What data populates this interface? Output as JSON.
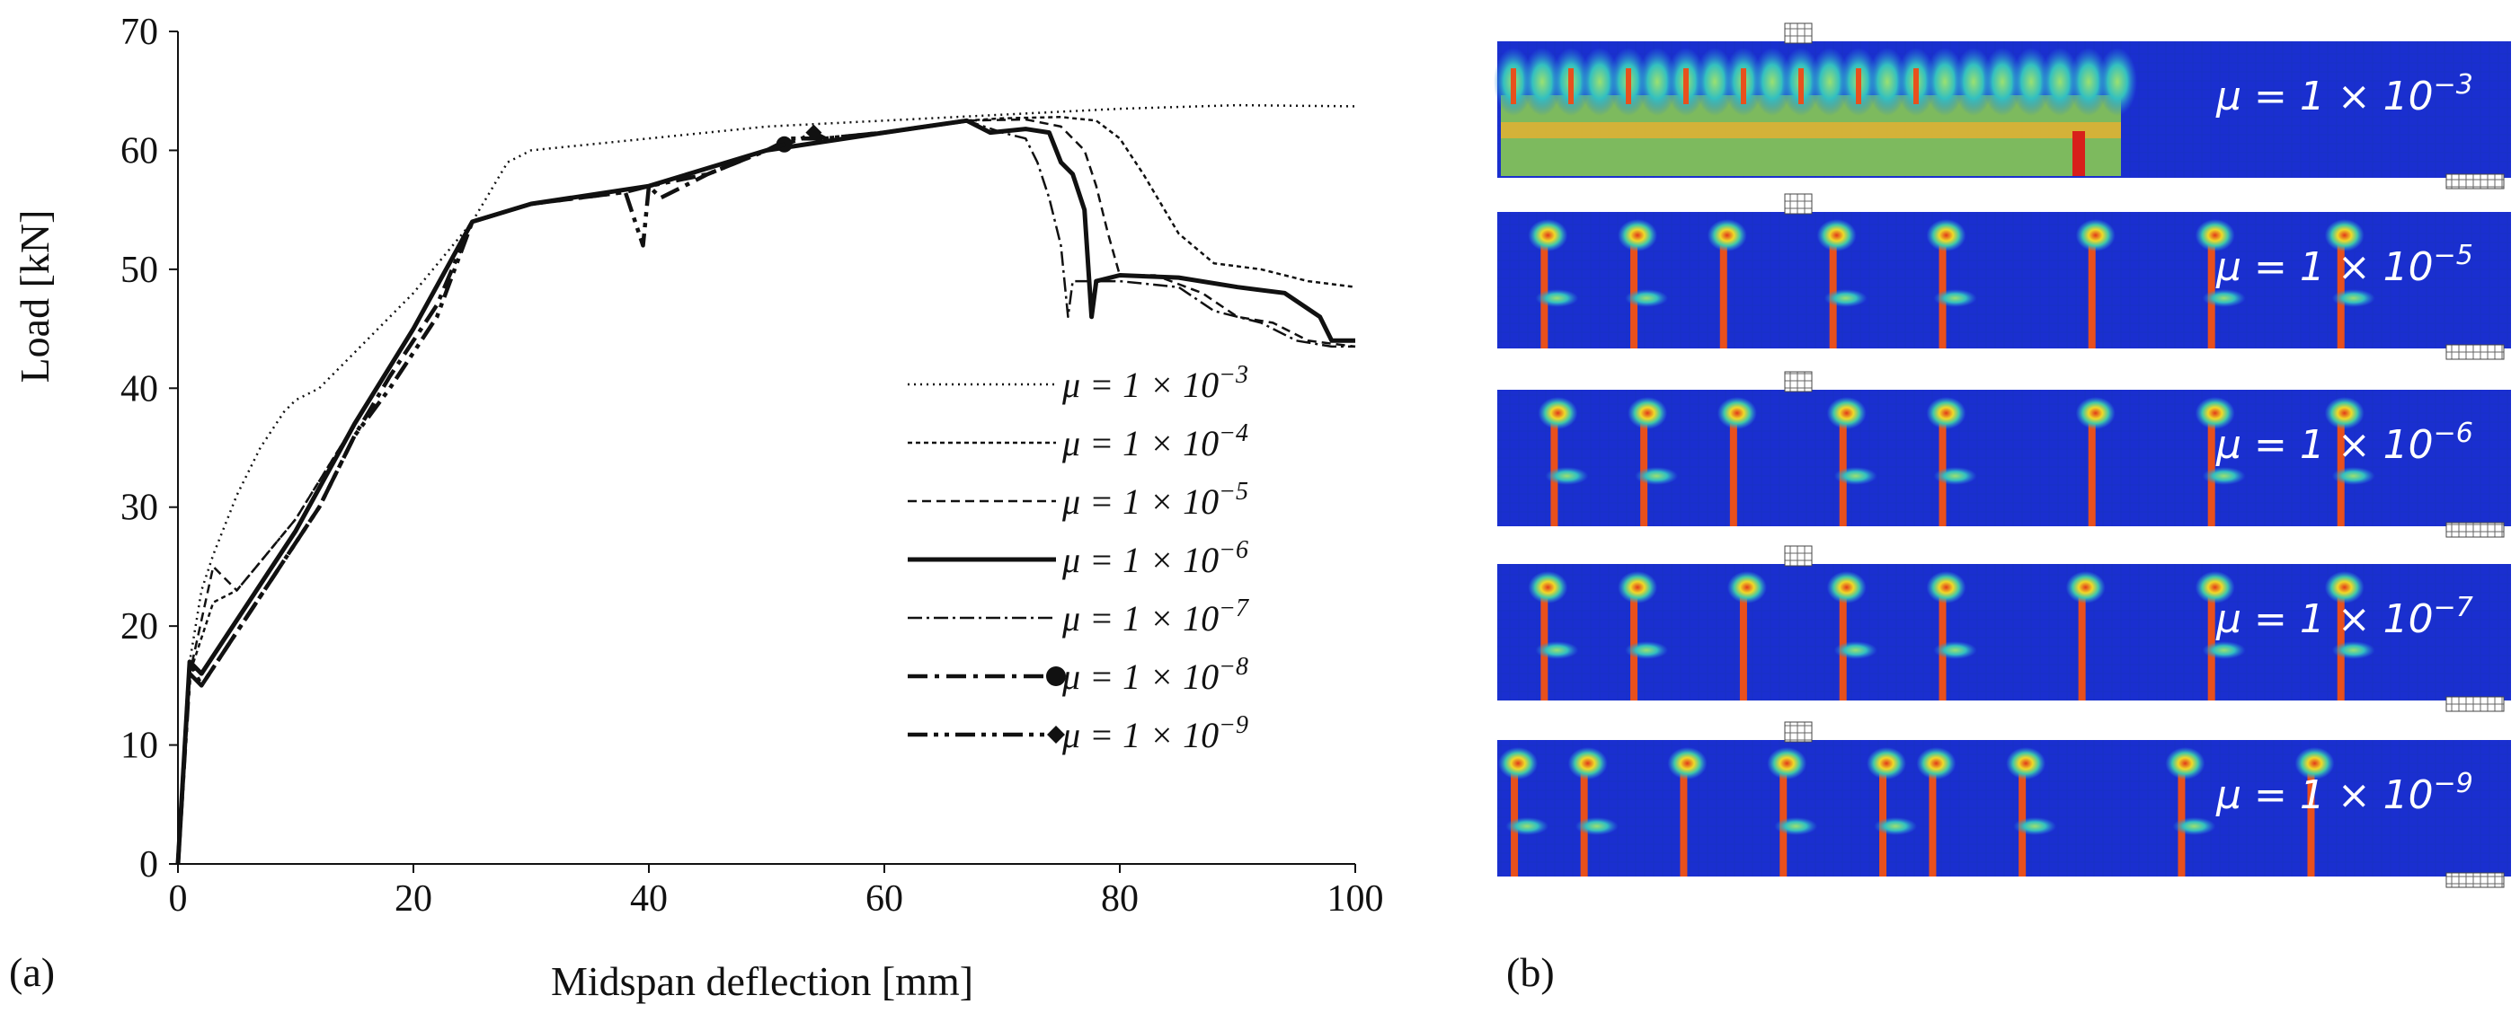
{
  "chart_data": {
    "type": "line",
    "panel_label": "(a)",
    "xlabel": "Midspan deflection [mm]",
    "ylabel": "Load [kN]",
    "xlim": [
      0,
      100
    ],
    "ylim": [
      0,
      70
    ],
    "x_ticks": [
      "0",
      "20",
      "40",
      "60",
      "80",
      "100"
    ],
    "y_ticks": [
      "0",
      "10",
      "20",
      "30",
      "40",
      "50",
      "60",
      "70"
    ],
    "legend_position": "right-center",
    "series": [
      {
        "name": "μ = 1 × 10⁻³",
        "base": "μ = 1 × 10",
        "exp": "−3",
        "style": "dotted",
        "x": [
          0,
          1,
          2,
          3,
          5,
          7,
          9,
          10,
          12,
          15,
          20,
          25,
          28,
          30,
          40,
          50,
          60,
          70,
          80,
          90,
          100
        ],
        "y": [
          0,
          17,
          23,
          26,
          31,
          35,
          38,
          39,
          40,
          43,
          48,
          54,
          59,
          60,
          61,
          62,
          62.5,
          63,
          63.5,
          63.8,
          63.7
        ]
      },
      {
        "name": "μ = 1 × 10⁻⁴",
        "base": "μ = 1 × 10",
        "exp": "−4",
        "style": "dash-fine",
        "x": [
          0,
          1,
          3,
          5,
          10,
          15,
          20,
          25,
          30,
          40,
          50,
          60,
          67,
          70,
          75,
          78,
          80,
          82,
          85,
          88,
          92,
          96,
          100
        ],
        "y": [
          0,
          16,
          22,
          23,
          29,
          37,
          45,
          54,
          55.5,
          57,
          60,
          61.5,
          62.5,
          62.7,
          62.8,
          62.5,
          61,
          58,
          53,
          50.5,
          50,
          49,
          48.5
        ]
      },
      {
        "name": "μ = 1 × 10⁻⁵",
        "base": "μ = 1 × 10",
        "exp": "−5",
        "style": "dashed",
        "x": [
          0,
          1,
          3,
          5,
          10,
          15,
          20,
          25,
          30,
          40,
          50,
          60,
          67,
          72,
          75,
          77,
          78,
          79,
          80,
          83,
          87,
          90,
          93,
          96,
          100
        ],
        "y": [
          0,
          16,
          25,
          23,
          29,
          37,
          45,
          54,
          55.5,
          57,
          60,
          61.5,
          62.5,
          62.6,
          62,
          60,
          57,
          53,
          49.5,
          49.5,
          48,
          46,
          45.5,
          44,
          43.5
        ]
      },
      {
        "name": "μ = 1 × 10⁻⁶",
        "base": "μ = 1 × 10",
        "exp": "−6",
        "style": "solid",
        "x": [
          0,
          1,
          2,
          4,
          6,
          10,
          15,
          20,
          25,
          30,
          40,
          50,
          60,
          67,
          69,
          72,
          74,
          75,
          76,
          77,
          77.6,
          78,
          80,
          85,
          90,
          94,
          97,
          98,
          100
        ],
        "y": [
          0,
          17,
          16,
          19,
          22,
          28,
          37,
          45,
          54,
          55.5,
          57,
          60,
          61.5,
          62.5,
          61.5,
          61.8,
          61.5,
          59,
          58,
          55,
          46,
          49,
          49.5,
          49.3,
          48.5,
          48,
          46,
          44,
          44
        ]
      },
      {
        "name": "μ = 1 × 10⁻⁷",
        "base": "μ = 1 × 10",
        "exp": "−7",
        "style": "dash-dot",
        "x": [
          0,
          1,
          2,
          4,
          6,
          10,
          15,
          20,
          25,
          30,
          40,
          50,
          60,
          67,
          70,
          72,
          73,
          74,
          75,
          75.6,
          76,
          80,
          85,
          88,
          92,
          95,
          98,
          100
        ],
        "y": [
          0,
          17,
          16,
          19,
          22,
          28,
          37,
          45,
          54,
          55.5,
          57,
          60,
          61.5,
          62.5,
          61.5,
          61,
          59,
          56,
          52,
          46,
          49,
          49,
          48.5,
          46.5,
          45.5,
          44,
          43.5,
          43.5
        ]
      },
      {
        "name": "μ = 1 × 10⁻⁸",
        "base": "μ = 1 × 10",
        "exp": "−8",
        "style": "dash-dot-circle",
        "x": [
          0,
          1,
          2,
          4,
          6,
          8,
          10,
          12,
          15,
          18,
          20,
          22,
          25,
          30,
          38,
          40,
          41,
          45,
          50,
          51,
          52,
          55,
          60,
          67
        ],
        "y": [
          0,
          17,
          15,
          18,
          21,
          24,
          27,
          30,
          36,
          41,
          44,
          47,
          54,
          55.5,
          56.5,
          57,
          56,
          58,
          60,
          60.5,
          61,
          61,
          61.5,
          62.5
        ]
      },
      {
        "name": "μ = 1 × 10⁻⁹",
        "base": "μ = 1 × 10",
        "exp": "−9",
        "style": "dash-dot-dot-diamond",
        "x": [
          0,
          1,
          2,
          4,
          6,
          8,
          10,
          12,
          15,
          18,
          20,
          22,
          25,
          30,
          38,
          39.5,
          40,
          45,
          50,
          53,
          54,
          55,
          60,
          67
        ],
        "y": [
          0,
          16,
          15,
          18,
          21,
          24,
          27,
          30,
          36,
          40,
          43,
          46,
          54,
          55.5,
          56.5,
          52,
          57,
          58,
          60,
          61,
          61.5,
          61,
          61.5,
          62.5
        ]
      }
    ]
  },
  "contour_panel": {
    "panel_label": "(b)",
    "plots": [
      {
        "label_base": "μ = 1 × 10",
        "exp": "−3"
      },
      {
        "label_base": "μ = 1 × 10",
        "exp": "−5"
      },
      {
        "label_base": "μ = 1 × 10",
        "exp": "−6"
      },
      {
        "label_base": "μ = 1 × 10",
        "exp": "−7"
      },
      {
        "label_base": "μ = 1 × 10",
        "exp": "−9"
      }
    ],
    "colors": {
      "background": "#1a2fd0",
      "crack": "#e8501c",
      "halo": "#3fc8c0",
      "hot": "#f2e02a"
    }
  }
}
